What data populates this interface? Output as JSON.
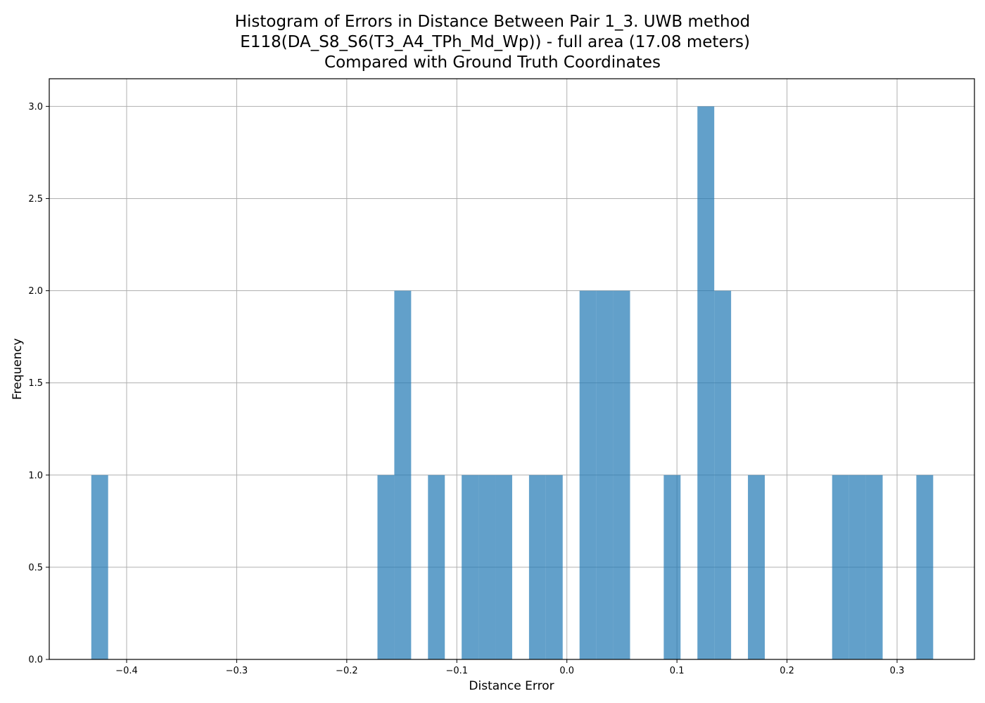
{
  "chart_data": {
    "type": "bar",
    "title_lines": [
      "Histogram of Errors in Distance Between Pair 1_3. UWB method",
      " E118(DA_S8_S6(T3_A4_TPh_Md_Wp)) - full area (17.08 meters)",
      "Compared with Ground Truth Coordinates"
    ],
    "xlabel": "Distance Error",
    "ylabel": "Frequency",
    "xlim": [
      -0.4703,
      0.3703
    ],
    "ylim": [
      0,
      3.15
    ],
    "grid": true,
    "x_ticks": [
      {
        "value": -0.4,
        "label": "−0.4"
      },
      {
        "value": -0.3,
        "label": "−0.3"
      },
      {
        "value": -0.2,
        "label": "−0.2"
      },
      {
        "value": -0.1,
        "label": "−0.1"
      },
      {
        "value": 0.0,
        "label": "0.0"
      },
      {
        "value": 0.1,
        "label": "0.1"
      },
      {
        "value": 0.2,
        "label": "0.2"
      },
      {
        "value": 0.3,
        "label": "0.3"
      }
    ],
    "y_ticks": [
      {
        "value": 0.0,
        "label": "0.0"
      },
      {
        "value": 0.5,
        "label": "0.5"
      },
      {
        "value": 1.0,
        "label": "1.0"
      },
      {
        "value": 1.5,
        "label": "1.5"
      },
      {
        "value": 2.0,
        "label": "2.0"
      },
      {
        "value": 2.5,
        "label": "2.5"
      },
      {
        "value": 3.0,
        "label": "3.0"
      }
    ],
    "bar_color": "#1f77b4",
    "bins": [
      {
        "x0": -0.4321,
        "x1": -0.4168,
        "value": 1
      },
      {
        "x0": -0.1721,
        "x1": -0.1568,
        "value": 1
      },
      {
        "x0": -0.1568,
        "x1": -0.1415,
        "value": 2
      },
      {
        "x0": -0.1262,
        "x1": -0.1109,
        "value": 1
      },
      {
        "x0": -0.0956,
        "x1": -0.0803,
        "value": 1
      },
      {
        "x0": -0.0803,
        "x1": -0.065,
        "value": 1
      },
      {
        "x0": -0.065,
        "x1": -0.0497,
        "value": 1
      },
      {
        "x0": -0.0344,
        "x1": -0.0191,
        "value": 1
      },
      {
        "x0": -0.0191,
        "x1": -0.0038,
        "value": 1
      },
      {
        "x0": 0.0115,
        "x1": 0.0268,
        "value": 2
      },
      {
        "x0": 0.0268,
        "x1": 0.0421,
        "value": 2
      },
      {
        "x0": 0.0421,
        "x1": 0.0574,
        "value": 2
      },
      {
        "x0": 0.088,
        "x1": 0.1033,
        "value": 1
      },
      {
        "x0": 0.1186,
        "x1": 0.1339,
        "value": 3
      },
      {
        "x0": 0.1339,
        "x1": 0.1492,
        "value": 2
      },
      {
        "x0": 0.1645,
        "x1": 0.1798,
        "value": 1
      },
      {
        "x0": 0.241,
        "x1": 0.2563,
        "value": 1
      },
      {
        "x0": 0.2563,
        "x1": 0.2716,
        "value": 1
      },
      {
        "x0": 0.2716,
        "x1": 0.2869,
        "value": 1
      },
      {
        "x0": 0.3175,
        "x1": 0.3328,
        "value": 1
      }
    ]
  }
}
